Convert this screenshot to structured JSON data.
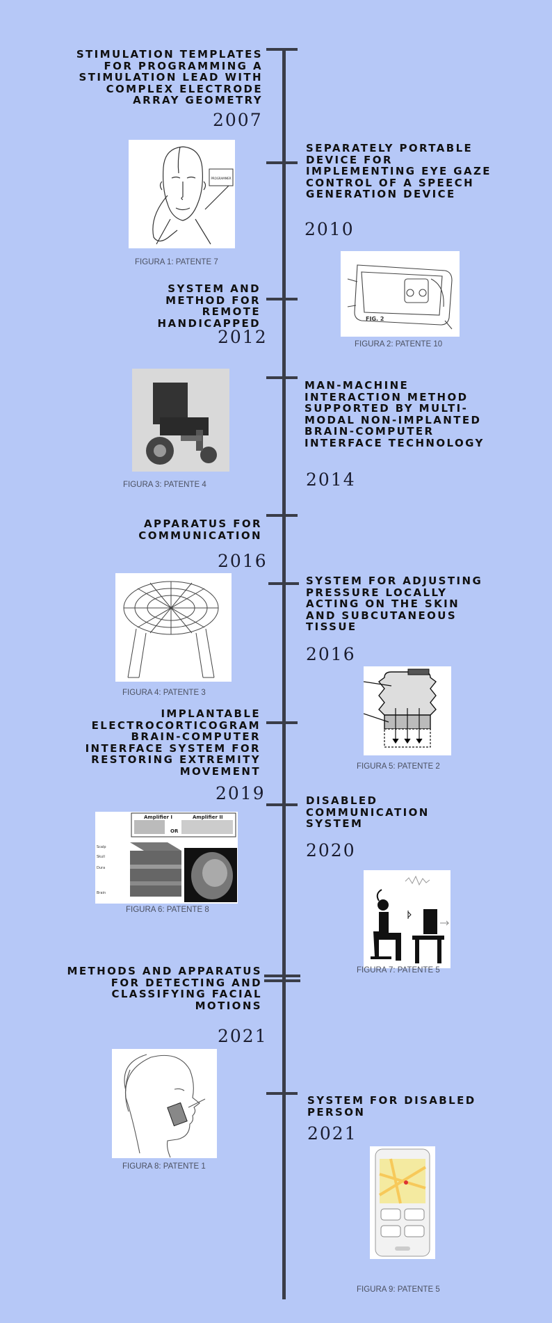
{
  "entries": [
    {
      "title": "STIMULATION TEMPLATES FOR PROGRAMMING A STIMULATION LEAD WITH COMPLEX ELECTRODE ARRAY GEOMETRY",
      "year": "2007",
      "caption": "FIGURA 1: PATENTE 7",
      "image_text": "PROGRAMMER"
    },
    {
      "title": "SEPARATELY PORTABLE DEVICE FOR IMPLEMENTING EYE GAZE CONTROL OF A SPEECH GENERATION DEVICE",
      "year": "2010",
      "caption": "FIGURA 2: PATENTE 10",
      "image_text": "FIG. 2"
    },
    {
      "title": "SYSTEM AND METHOD FOR REMOTE HANDICAPPED",
      "year": "2012",
      "caption": "FIGURA 3: PATENTE 4"
    },
    {
      "title": "MAN-MACHINE INTERACTION METHOD SUPPORTED BY MULTI-MODAL NON-IMPLANTED BRAIN-COMPUTER INTERFACE TECHNOLOGY",
      "year": "2014"
    },
    {
      "title": "APPARATUS FOR COMMUNICATION",
      "year": "2016",
      "caption": "FIGURA 4: PATENTE 3"
    },
    {
      "title": "SYSTEM FOR ADJUSTING PRESSURE LOCALLY ACTING ON THE SKIN AND SUBCUTANEOUS TISSUE",
      "year": "2016",
      "caption": "FIGURA 5: PATENTE 2"
    },
    {
      "title": "IMPLANTABLE ELECTROCORTICOGRAM BRAIN-COMPUTER INTERFACE SYSTEM FOR RESTORING EXTREMITY MOVEMENT",
      "year": "2019",
      "caption": "FIGURA 6: PATENTE 8",
      "image_text": [
        "Amplifier I",
        "Amplifier II",
        "OR",
        "Scalp",
        "Skull",
        "Dura",
        "Brain"
      ]
    },
    {
      "title": "DISABLED COMMUNICATION SYSTEM",
      "year": "2020",
      "caption": "FIGURA 7: PATENTE 5"
    },
    {
      "title": "METHODS AND APPARATUS FOR DETECTING AND CLASSIFYING FACIAL MOTIONS",
      "year": "2021",
      "caption": "FIGURA 8: PATENTE 1"
    },
    {
      "title": "SYSTEM FOR DISABLED PERSON",
      "year": "2021",
      "caption": "FIGURA 9: PATENTE 5"
    }
  ],
  "colors": {
    "background": "#b6c8f7",
    "axis": "#3a3d48",
    "text": "#111111"
  }
}
